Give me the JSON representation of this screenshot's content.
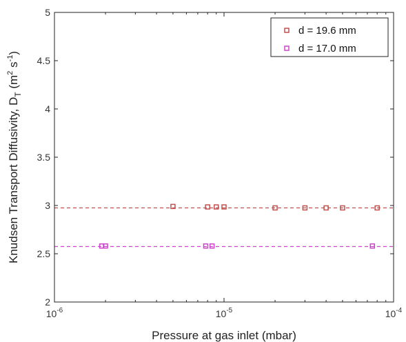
{
  "chart_data": {
    "type": "scatter",
    "xlabel": "Pressure at gas inlet (mbar)",
    "ylabel": {
      "main": "Knudsen Transport Diffusivity, D",
      "sub": "T",
      "unit_open": " (m",
      "unit_sup1": "2",
      "unit_mid": " s",
      "unit_sup2": "-1",
      "unit_close": ")"
    },
    "x_scale": "log",
    "xlim": [
      1e-06,
      0.0001
    ],
    "ylim": [
      2,
      5
    ],
    "x_ticks": [
      {
        "value": 1e-06,
        "base": "10",
        "exp": "-6"
      },
      {
        "value": 1e-05,
        "base": "10",
        "exp": "-5"
      },
      {
        "value": 0.0001,
        "base": "10",
        "exp": "-4"
      }
    ],
    "y_ticks": [
      {
        "value": 2,
        "label": "2"
      },
      {
        "value": 2.5,
        "label": "2.5"
      },
      {
        "value": 3,
        "label": "3"
      },
      {
        "value": 3.5,
        "label": "3.5"
      },
      {
        "value": 4,
        "label": "4"
      },
      {
        "value": 4.5,
        "label": "4.5"
      },
      {
        "value": 5,
        "label": "5"
      }
    ],
    "grid": false,
    "legend_position": "top-right",
    "series": [
      {
        "name": "d = 19.6 mm",
        "color": "#c0504d",
        "marker": "square",
        "fit_value": 2.975,
        "x": [
          5e-06,
          8e-06,
          9e-06,
          1e-05,
          2e-05,
          3e-05,
          4e-05,
          5e-05,
          8e-05
        ],
        "y": [
          2.99,
          2.985,
          2.985,
          2.985,
          2.975,
          2.975,
          2.975,
          2.975,
          2.975
        ]
      },
      {
        "name": "d = 17.0 mm",
        "color": "#cc44cc",
        "marker": "square",
        "fit_value": 2.575,
        "x": [
          1.9e-06,
          2e-06,
          7.8e-06,
          8.5e-06,
          7.5e-05
        ],
        "y": [
          2.58,
          2.58,
          2.58,
          2.58,
          2.58
        ]
      }
    ]
  }
}
